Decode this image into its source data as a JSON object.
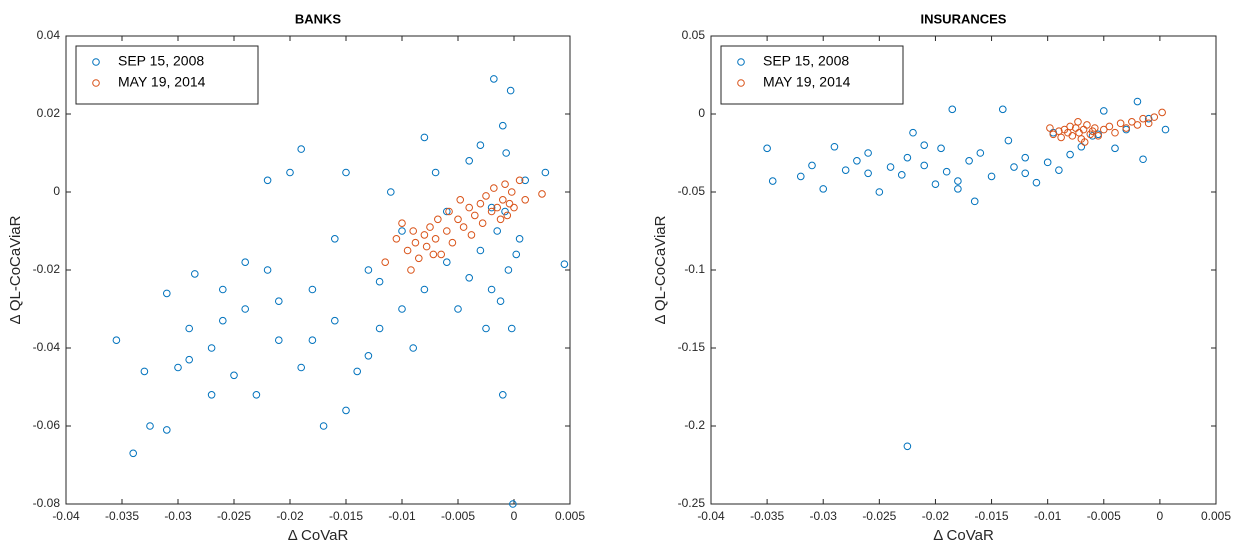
{
  "chart_data": [
    {
      "type": "scatter",
      "title": "BANKS",
      "xlabel": "Δ CoVaR",
      "ylabel": "Δ QL-CoCaViaR",
      "xlim": [
        -0.04,
        0.005
      ],
      "ylim": [
        -0.08,
        0.04
      ],
      "xticks": [
        -0.04,
        -0.035,
        -0.03,
        -0.025,
        -0.02,
        -0.015,
        -0.01,
        -0.005,
        0,
        0.005
      ],
      "yticks": [
        -0.08,
        -0.06,
        -0.04,
        -0.02,
        0,
        0.02,
        0.04
      ],
      "legend": "upper left",
      "series": [
        {
          "name": "SEP 15, 2008",
          "color": "#0072BD",
          "x": [
            -0.0355,
            -0.034,
            -0.0325,
            -0.031,
            -0.031,
            -0.03,
            -0.029,
            -0.0285,
            -0.027,
            -0.026,
            -0.025,
            -0.024,
            -0.023,
            -0.022,
            -0.022,
            -0.021,
            -0.02,
            -0.019,
            -0.019,
            -0.018,
            -0.017,
            -0.016,
            -0.015,
            -0.015,
            -0.014,
            -0.013,
            -0.012,
            -0.011,
            -0.01,
            -0.009,
            -0.008,
            -0.008,
            -0.007,
            -0.006,
            -0.005,
            -0.004,
            -0.003,
            -0.003,
            -0.0025,
            -0.002,
            -0.0018,
            -0.0015,
            -0.001,
            -0.001,
            -0.0008,
            -0.0005,
            -0.0003,
            -0.0002,
            -0.0001,
            0.0005,
            0.001,
            0.0028,
            0.0045,
            -0.026,
            -0.024,
            -0.018,
            -0.013,
            -0.027,
            -0.01,
            -0.006,
            -0.033,
            -0.029,
            -0.021,
            -0.016,
            -0.012,
            -0.004,
            -0.002,
            -0.0007,
            0.0002,
            -0.0012
          ],
          "y": [
            -0.038,
            -0.067,
            -0.06,
            -0.061,
            -0.026,
            -0.045,
            -0.035,
            -0.021,
            -0.04,
            -0.025,
            -0.047,
            -0.03,
            -0.052,
            -0.02,
            0.003,
            -0.038,
            0.005,
            0.011,
            -0.045,
            -0.025,
            -0.06,
            -0.033,
            0.005,
            -0.056,
            -0.046,
            -0.02,
            -0.035,
            0.0,
            -0.03,
            -0.04,
            -0.025,
            0.014,
            0.005,
            -0.018,
            -0.03,
            0.008,
            -0.015,
            0.012,
            -0.035,
            -0.025,
            0.029,
            -0.01,
            0.017,
            -0.052,
            -0.005,
            -0.02,
            0.026,
            -0.035,
            -0.08,
            -0.012,
            0.003,
            0.005,
            -0.0185,
            -0.033,
            -0.018,
            -0.038,
            -0.042,
            -0.052,
            -0.01,
            -0.005,
            -0.046,
            -0.043,
            -0.028,
            -0.012,
            -0.023,
            -0.022,
            -0.004,
            0.01,
            -0.016,
            -0.028
          ]
        },
        {
          "name": "MAY 19, 2014",
          "color": "#D95319",
          "x": [
            -0.0105,
            -0.01,
            -0.0095,
            -0.009,
            -0.0088,
            -0.0085,
            -0.008,
            -0.0078,
            -0.0075,
            -0.007,
            -0.0068,
            -0.0065,
            -0.006,
            -0.0058,
            -0.0055,
            -0.005,
            -0.0048,
            -0.0045,
            -0.004,
            -0.0038,
            -0.0035,
            -0.003,
            -0.0028,
            -0.0025,
            -0.002,
            -0.0018,
            -0.0015,
            -0.0012,
            -0.001,
            -0.0008,
            -0.0006,
            -0.0004,
            -0.0002,
            0.0,
            0.0005,
            0.001,
            0.0025,
            -0.0115,
            -0.0092,
            -0.0072
          ],
          "y": [
            -0.012,
            -0.008,
            -0.015,
            -0.01,
            -0.013,
            -0.017,
            -0.011,
            -0.014,
            -0.009,
            -0.012,
            -0.007,
            -0.016,
            -0.01,
            -0.005,
            -0.013,
            -0.007,
            -0.002,
            -0.009,
            -0.004,
            -0.011,
            -0.006,
            -0.003,
            -0.008,
            -0.001,
            -0.005,
            0.001,
            -0.004,
            -0.007,
            -0.002,
            0.002,
            -0.006,
            -0.003,
            0.0,
            -0.004,
            0.003,
            -0.002,
            -0.0005,
            -0.018,
            -0.02,
            -0.016
          ]
        }
      ]
    },
    {
      "type": "scatter",
      "title": "INSURANCES",
      "xlabel": "Δ CoVaR",
      "ylabel": "Δ QL-CoCaViaR",
      "xlim": [
        -0.04,
        0.005
      ],
      "ylim": [
        -0.25,
        0.05
      ],
      "xticks": [
        -0.04,
        -0.035,
        -0.03,
        -0.025,
        -0.02,
        -0.015,
        -0.01,
        -0.005,
        0,
        0.005
      ],
      "yticks": [
        -0.25,
        -0.2,
        -0.15,
        -0.1,
        -0.05,
        0,
        0.05
      ],
      "legend": "upper left",
      "series": [
        {
          "name": "SEP 15, 2008",
          "color": "#0072BD",
          "x": [
            -0.035,
            -0.0345,
            -0.032,
            -0.031,
            -0.03,
            -0.029,
            -0.028,
            -0.027,
            -0.026,
            -0.025,
            -0.024,
            -0.023,
            -0.0225,
            -0.022,
            -0.021,
            -0.02,
            -0.0195,
            -0.019,
            -0.0185,
            -0.018,
            -0.017,
            -0.0165,
            -0.016,
            -0.015,
            -0.014,
            -0.0135,
            -0.013,
            -0.012,
            -0.011,
            -0.01,
            -0.0095,
            -0.009,
            -0.008,
            -0.007,
            -0.006,
            -0.005,
            -0.004,
            -0.003,
            -0.002,
            -0.0015,
            -0.001,
            0.0005,
            -0.0225,
            -0.026,
            -0.021,
            -0.018,
            -0.012,
            -0.0055
          ],
          "y": [
            -0.022,
            -0.043,
            -0.04,
            -0.033,
            -0.048,
            -0.021,
            -0.036,
            -0.03,
            -0.025,
            -0.05,
            -0.034,
            -0.039,
            -0.213,
            -0.012,
            -0.033,
            -0.045,
            -0.022,
            -0.037,
            0.003,
            -0.048,
            -0.03,
            -0.056,
            -0.025,
            -0.04,
            0.003,
            -0.017,
            -0.034,
            -0.028,
            -0.044,
            -0.031,
            -0.012,
            -0.036,
            -0.026,
            -0.021,
            -0.014,
            0.002,
            -0.022,
            -0.01,
            0.008,
            -0.029,
            -0.003,
            -0.01,
            -0.028,
            -0.038,
            -0.02,
            -0.043,
            -0.038,
            -0.013
          ]
        },
        {
          "name": "MAY 19, 2014",
          "color": "#D95319",
          "x": [
            -0.0098,
            -0.0095,
            -0.009,
            -0.0088,
            -0.0085,
            -0.0082,
            -0.008,
            -0.0078,
            -0.0075,
            -0.0072,
            -0.007,
            -0.0068,
            -0.0065,
            -0.0062,
            -0.006,
            -0.0058,
            -0.0055,
            -0.005,
            -0.0045,
            -0.004,
            -0.0035,
            -0.003,
            -0.0025,
            -0.002,
            -0.0015,
            -0.001,
            -0.0005,
            0.0002,
            -0.0073,
            -0.0067
          ],
          "y": [
            -0.009,
            -0.013,
            -0.011,
            -0.015,
            -0.01,
            -0.012,
            -0.008,
            -0.014,
            -0.009,
            -0.012,
            -0.016,
            -0.01,
            -0.007,
            -0.013,
            -0.011,
            -0.009,
            -0.014,
            -0.01,
            -0.008,
            -0.012,
            -0.006,
            -0.009,
            -0.005,
            -0.007,
            -0.003,
            -0.006,
            -0.002,
            0.001,
            -0.005,
            -0.018
          ]
        }
      ]
    }
  ]
}
